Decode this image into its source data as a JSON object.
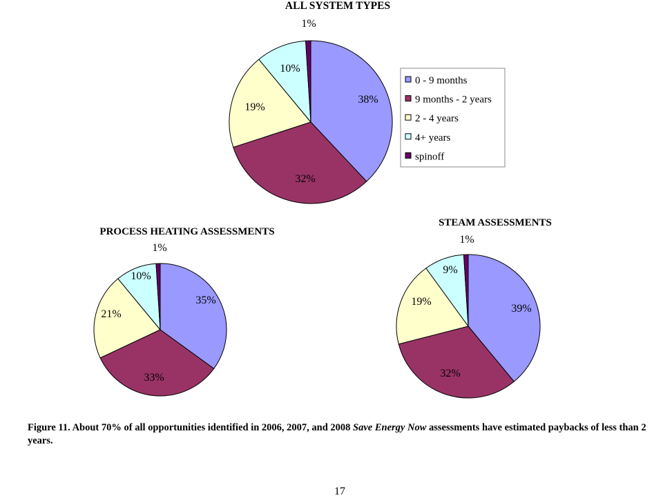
{
  "colors": {
    "0 - 9 months": "#9999ff",
    "9 months - 2 years": "#993366",
    "2 - 4 years": "#ffffcc",
    "4+ years": "#ccffff",
    "spinoff": "#660066"
  },
  "chart_data": [
    {
      "type": "pie",
      "title": "ALL SYSTEM TYPES",
      "categories": [
        "0 - 9 months",
        "9 months - 2 years",
        "2 - 4 years",
        "4+ years",
        "spinoff"
      ],
      "values": [
        38,
        32,
        19,
        10,
        1
      ],
      "labels": [
        "38%",
        "32%",
        "19%",
        "10%",
        "1%"
      ],
      "legend": "right"
    },
    {
      "type": "pie",
      "title": "PROCESS HEATING ASSESSMENTS",
      "categories": [
        "0 - 9 months",
        "9 months - 2 years",
        "2 - 4 years",
        "4+ years",
        "spinoff"
      ],
      "values": [
        35,
        33,
        21,
        10,
        1
      ],
      "labels": [
        "35%",
        "33%",
        "21%",
        "10%",
        "1%"
      ]
    },
    {
      "type": "pie",
      "title": "STEAM ASSESSMENTS",
      "categories": [
        "0 - 9 months",
        "9 months - 2 years",
        "2 - 4 years",
        "4+ years",
        "spinoff"
      ],
      "values": [
        39,
        32,
        19,
        9,
        1
      ],
      "labels": [
        "39%",
        "32%",
        "19%",
        "9%",
        "1%"
      ]
    }
  ],
  "caption": {
    "prefix": "Figure 11. About 70% of all opportunities identified in 2006, 2007, and 2008 ",
    "emphasis": "Save Energy Now",
    "suffix": " assessments have estimated paybacks of less than 2 years."
  },
  "page_number": "17"
}
